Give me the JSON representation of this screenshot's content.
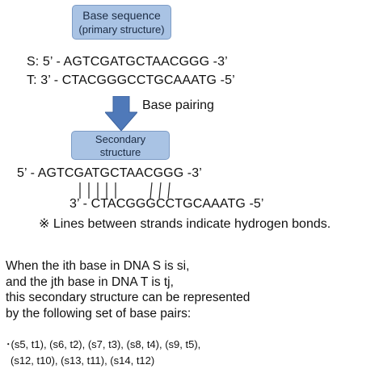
{
  "box_primary": {
    "line1": "Base sequence",
    "line2": "(primary structure)"
  },
  "strand_s": "S: 5’ - AGTCGATGCTAACGGG -3’",
  "strand_t": "T: 3’ - CTACGGGCCTGCAAATG -5’",
  "arrow_label": "Base pairing",
  "box_secondary": {
    "line1": "Secondary",
    "line2": "structure"
  },
  "secondary_top": "5’ - AGTCGATGCTAACGGG -3’",
  "secondary_bottom": "3’ - CTACGGGCCTGCAAATG -5’",
  "note": "※  Lines between strands indicate hydrogen bonds.",
  "paragraph": [
    "When the ith base in DNA S is si,",
    "and the jth base in DNA T is tj,",
    "this secondary structure can be represented",
    "by the following set of base pairs:"
  ],
  "pairs_line1": "･(s5, t1), (s6, t2), (s7, t3), (s8, t4), (s9, t5),",
  "pairs_line2": "(s12, t10), (s13, t11), (s14, t12)",
  "colors": {
    "box_fill": "#a9c3e4",
    "arrow_fill": "#4f79b9"
  }
}
